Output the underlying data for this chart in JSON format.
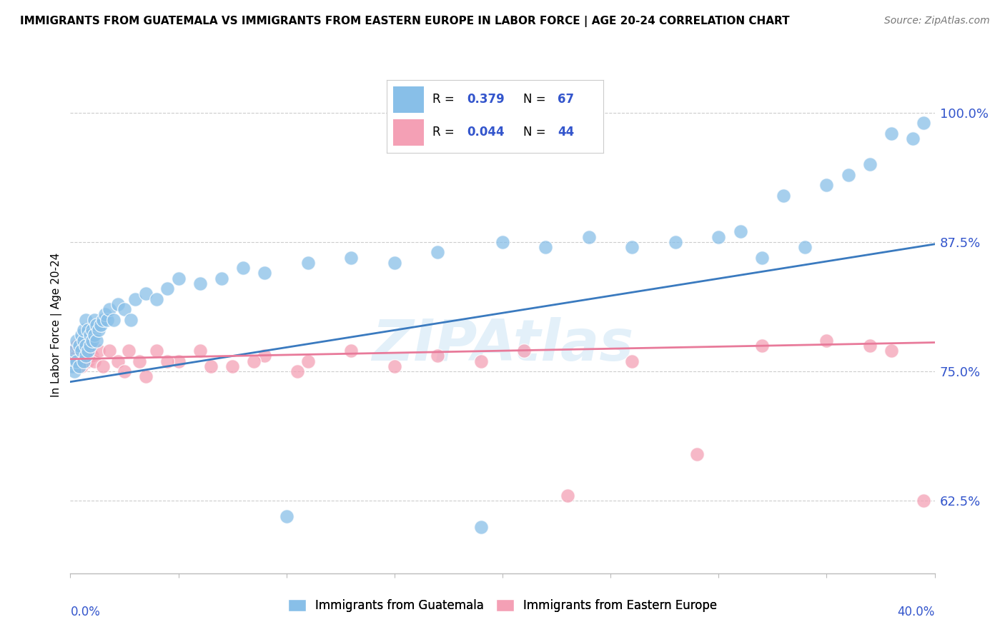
{
  "title": "IMMIGRANTS FROM GUATEMALA VS IMMIGRANTS FROM EASTERN EUROPE IN LABOR FORCE | AGE 20-24 CORRELATION CHART",
  "source": "Source: ZipAtlas.com",
  "ylabel": "In Labor Force | Age 20-24",
  "xlim": [
    0.0,
    0.4
  ],
  "ylim": [
    0.555,
    1.035
  ],
  "yticks": [
    0.625,
    0.75,
    0.875,
    1.0
  ],
  "ytick_labels": [
    "62.5%",
    "75.0%",
    "87.5%",
    "100.0%"
  ],
  "color_blue": "#88bfe8",
  "color_pink": "#f4a0b5",
  "color_line_blue": "#3a7abf",
  "color_line_pink": "#e87a9a",
  "color_blue_text": "#3355cc",
  "legend_r1": "0.379",
  "legend_n1": "67",
  "legend_r2": "0.044",
  "legend_n2": "44",
  "watermark": "ZIPAtlas",
  "blue_scatter_x": [
    0.001,
    0.001,
    0.002,
    0.002,
    0.003,
    0.003,
    0.004,
    0.004,
    0.005,
    0.005,
    0.006,
    0.006,
    0.006,
    0.007,
    0.007,
    0.007,
    0.008,
    0.008,
    0.009,
    0.009,
    0.01,
    0.01,
    0.011,
    0.011,
    0.012,
    0.012,
    0.013,
    0.014,
    0.015,
    0.016,
    0.017,
    0.018,
    0.02,
    0.022,
    0.025,
    0.028,
    0.03,
    0.035,
    0.04,
    0.045,
    0.05,
    0.06,
    0.07,
    0.08,
    0.09,
    0.1,
    0.11,
    0.13,
    0.15,
    0.17,
    0.19,
    0.2,
    0.22,
    0.24,
    0.26,
    0.28,
    0.3,
    0.31,
    0.33,
    0.35,
    0.36,
    0.37,
    0.38,
    0.39,
    0.395,
    0.34,
    0.32
  ],
  "blue_scatter_y": [
    0.755,
    0.76,
    0.77,
    0.75,
    0.78,
    0.76,
    0.775,
    0.755,
    0.785,
    0.77,
    0.78,
    0.76,
    0.79,
    0.8,
    0.775,
    0.765,
    0.79,
    0.77,
    0.785,
    0.775,
    0.79,
    0.78,
    0.8,
    0.785,
    0.795,
    0.78,
    0.79,
    0.795,
    0.8,
    0.805,
    0.8,
    0.81,
    0.8,
    0.815,
    0.81,
    0.8,
    0.82,
    0.825,
    0.82,
    0.83,
    0.84,
    0.835,
    0.84,
    0.85,
    0.845,
    0.61,
    0.855,
    0.86,
    0.855,
    0.865,
    0.6,
    0.875,
    0.87,
    0.88,
    0.87,
    0.875,
    0.88,
    0.885,
    0.92,
    0.93,
    0.94,
    0.95,
    0.98,
    0.975,
    0.99,
    0.87,
    0.86
  ],
  "pink_scatter_x": [
    0.002,
    0.002,
    0.003,
    0.003,
    0.004,
    0.005,
    0.005,
    0.006,
    0.007,
    0.008,
    0.009,
    0.01,
    0.011,
    0.013,
    0.015,
    0.018,
    0.022,
    0.027,
    0.032,
    0.04,
    0.05,
    0.06,
    0.075,
    0.09,
    0.11,
    0.13,
    0.15,
    0.17,
    0.19,
    0.21,
    0.23,
    0.26,
    0.29,
    0.32,
    0.35,
    0.37,
    0.38,
    0.395,
    0.025,
    0.035,
    0.045,
    0.065,
    0.085,
    0.105
  ],
  "pink_scatter_y": [
    0.77,
    0.76,
    0.765,
    0.775,
    0.76,
    0.77,
    0.755,
    0.765,
    0.77,
    0.76,
    0.77,
    0.765,
    0.76,
    0.77,
    0.755,
    0.77,
    0.76,
    0.77,
    0.76,
    0.77,
    0.76,
    0.77,
    0.755,
    0.765,
    0.76,
    0.77,
    0.755,
    0.765,
    0.76,
    0.77,
    0.63,
    0.76,
    0.67,
    0.775,
    0.78,
    0.775,
    0.77,
    0.625,
    0.75,
    0.745,
    0.76,
    0.755,
    0.76,
    0.75
  ],
  "blue_trend_x": [
    0.0,
    0.4
  ],
  "blue_trend_y": [
    0.74,
    0.873
  ],
  "pink_trend_x": [
    0.0,
    0.4
  ],
  "pink_trend_y": [
    0.762,
    0.778
  ]
}
